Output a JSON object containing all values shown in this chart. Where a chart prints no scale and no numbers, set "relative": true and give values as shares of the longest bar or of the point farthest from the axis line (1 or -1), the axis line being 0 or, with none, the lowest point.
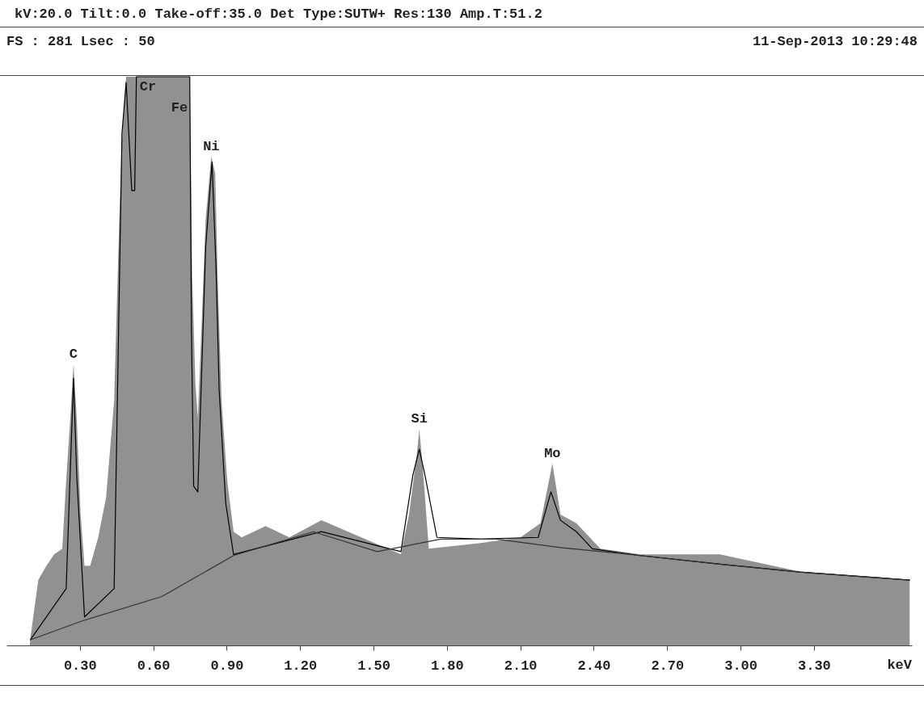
{
  "chart_data": {
    "type": "area",
    "title": "kV:20.0 Tilt:0.0 Take-off:35.0   Det Type:SUTW+ Res:130 Amp.T:51.2",
    "subtitle": "FS : 281   Lsec : 50",
    "xlabel": "keV",
    "relative": true,
    "grid": false,
    "annotations": [
      "11-Sep-2013 10:29:48",
      {
        "text": "C",
        "x": 0.274,
        "y": 0.495
      },
      {
        "text": "Cr",
        "x": 0.531,
        "y": 1
      },
      {
        "text": "Fe",
        "x": 0.66,
        "y": 1
      },
      {
        "text": "Ni",
        "x": 0.837,
        "y": 0.86
      },
      {
        "text": "Si",
        "x": 1.687,
        "y": 0.38
      },
      {
        "text": "Mo",
        "x": 2.231,
        "y": 0.32
      }
    ],
    "xlim": [
      0,
      3.7
    ],
    "xticks": [
      {
        "value": 0.3,
        "label": "0.30"
      },
      {
        "value": 0.6,
        "label": "0.60"
      },
      {
        "value": 0.9,
        "label": "0.90"
      },
      {
        "value": 1.2,
        "label": "1.20"
      },
      {
        "value": 1.5,
        "label": "1.50"
      },
      {
        "value": 1.8,
        "label": "1.80"
      },
      {
        "value": 2.1,
        "label": "2.10"
      },
      {
        "value": 2.4,
        "label": "2.40"
      },
      {
        "value": 2.7,
        "label": "2.70"
      },
      {
        "value": 3.0,
        "label": "3.00"
      },
      {
        "value": 3.3,
        "label": "3.30"
      }
    ],
    "series": [
      {
        "color": "#919191",
        "x": [
          0.095,
          0.098,
          0.13,
          0.163,
          0.195,
          0.228,
          0.244,
          0.261,
          0.274,
          0.287,
          0.303,
          0.319,
          0.342,
          0.375,
          0.407,
          0.44,
          0.459,
          0.472,
          0.489,
          0.749,
          0.759,
          0.772,
          0.782,
          0.798,
          0.814,
          0.837,
          0.853,
          0.863,
          0.879,
          0.902,
          0.928,
          0.961,
          1.059,
          1.156,
          1.287,
          1.45,
          1.612,
          1.645,
          1.678,
          1.687,
          1.7,
          1.726,
          1.938,
          2.101,
          2.182,
          2.231,
          2.264,
          2.329,
          2.427,
          2.59,
          2.915,
          3.241,
          3.567,
          3.691
        ],
        "values": [
          0,
          0.014,
          0.115,
          0.14,
          0.16,
          0.17,
          0.29,
          0.4,
          0.495,
          0.4,
          0.23,
          0.14,
          0.14,
          0.19,
          0.26,
          0.43,
          0.72,
          0.89,
          1,
          1,
          0.65,
          0.46,
          0.4,
          0.57,
          0.75,
          0.86,
          0.83,
          0.65,
          0.43,
          0.29,
          0.2,
          0.19,
          0.21,
          0.19,
          0.22,
          0.19,
          0.16,
          0.23,
          0.34,
          0.38,
          0.32,
          0.17,
          0.18,
          0.19,
          0.215,
          0.32,
          0.23,
          0.215,
          0.17,
          0.16,
          0.16,
          0.13,
          0.12,
          0.115
        ]
      },
      {
        "type": "line",
        "color": "#000000",
        "x": [
          0.098,
          0.244,
          0.274,
          0.287,
          0.319,
          0.44,
          0.456,
          0.472,
          0.489,
          0.512,
          0.524,
          0.531,
          0.749,
          0.756,
          0.765,
          0.782,
          0.814,
          0.84,
          0.856,
          0.869,
          0.896,
          0.928,
          1.287,
          1.612,
          1.661,
          1.687,
          1.71,
          1.759,
          1.938,
          2.173,
          2.225,
          2.264,
          2.329,
          2.394,
          2.59,
          2.915,
          3.241,
          3.691
        ],
        "values": [
          0.01,
          0.1,
          0.47,
          0.3,
          0.05,
          0.1,
          0.5,
          0.9,
          0.99,
          0.8,
          0.8,
          1,
          1,
          0.55,
          0.28,
          0.27,
          0.7,
          0.85,
          0.67,
          0.45,
          0.25,
          0.16,
          0.2,
          0.165,
          0.3,
          0.345,
          0.3,
          0.19,
          0.187,
          0.19,
          0.27,
          0.22,
          0.2,
          0.17,
          0.158,
          0.143,
          0.129,
          0.115
        ]
      },
      {
        "type": "line",
        "color": "#333333",
        "x": [
          0.098,
          0.309,
          0.635,
          0.928,
          1.254,
          1.515,
          1.775,
          2.003,
          2.264,
          2.59,
          2.915,
          3.241,
          3.691
        ],
        "values": [
          0.01,
          0.043,
          0.086,
          0.158,
          0.2,
          0.165,
          0.187,
          0.187,
          0.172,
          0.158,
          0.143,
          0.129,
          0.115
        ]
      }
    ]
  }
}
